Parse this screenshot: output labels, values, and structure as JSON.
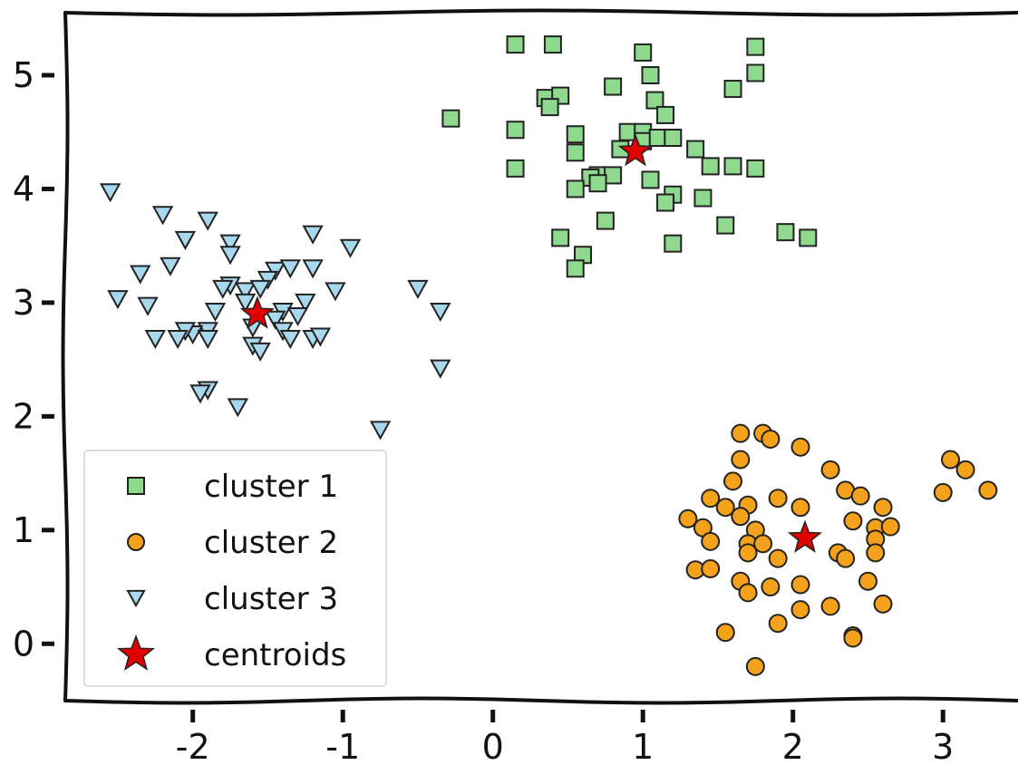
{
  "chart_data": {
    "type": "scatter",
    "title": "",
    "xlabel": "",
    "ylabel": "",
    "xlim": [
      -2.85,
      3.5
    ],
    "ylim": [
      -0.5,
      5.55
    ],
    "xticks": [
      -2,
      -1,
      0,
      1,
      2,
      3
    ],
    "yticks": [
      0,
      1,
      2,
      3,
      4,
      5
    ],
    "xtick_labels": [
      "-2",
      "-1",
      "0",
      "1",
      "2",
      "3"
    ],
    "ytick_labels": [
      "0",
      "1",
      "2",
      "3",
      "4",
      "5"
    ],
    "grid": false,
    "legend_position": "lower-left",
    "series": [
      {
        "name": "cluster 1",
        "marker": "square",
        "color": "#8fd98f",
        "points": [
          [
            0.15,
            5.27
          ],
          [
            0.4,
            5.27
          ],
          [
            1.0,
            5.2
          ],
          [
            1.05,
            5.0
          ],
          [
            1.75,
            5.25
          ],
          [
            1.75,
            5.02
          ],
          [
            0.8,
            4.9
          ],
          [
            1.6,
            4.88
          ],
          [
            0.35,
            4.8
          ],
          [
            0.45,
            4.82
          ],
          [
            0.38,
            4.72
          ],
          [
            1.08,
            4.78
          ],
          [
            -0.28,
            4.62
          ],
          [
            1.15,
            4.65
          ],
          [
            0.15,
            4.52
          ],
          [
            0.55,
            4.48
          ],
          [
            0.9,
            4.5
          ],
          [
            1.0,
            4.5
          ],
          [
            1.0,
            4.42
          ],
          [
            1.1,
            4.45
          ],
          [
            1.2,
            4.45
          ],
          [
            0.55,
            4.32
          ],
          [
            0.85,
            4.35
          ],
          [
            1.35,
            4.35
          ],
          [
            1.45,
            4.2
          ],
          [
            1.6,
            4.2
          ],
          [
            1.75,
            4.18
          ],
          [
            0.15,
            4.18
          ],
          [
            0.7,
            4.12
          ],
          [
            0.65,
            4.1
          ],
          [
            0.8,
            4.12
          ],
          [
            0.7,
            4.05
          ],
          [
            1.05,
            4.08
          ],
          [
            0.55,
            4.0
          ],
          [
            1.2,
            3.95
          ],
          [
            1.15,
            3.88
          ],
          [
            1.4,
            3.92
          ],
          [
            0.75,
            3.72
          ],
          [
            1.55,
            3.68
          ],
          [
            1.95,
            3.62
          ],
          [
            2.1,
            3.57
          ],
          [
            0.45,
            3.57
          ],
          [
            1.2,
            3.52
          ],
          [
            0.6,
            3.42
          ],
          [
            0.55,
            3.3
          ]
        ]
      },
      {
        "name": "cluster 2",
        "marker": "circle",
        "color": "#f4a21b",
        "points": [
          [
            1.65,
            1.85
          ],
          [
            1.8,
            1.85
          ],
          [
            1.85,
            1.8
          ],
          [
            1.65,
            1.62
          ],
          [
            2.05,
            1.73
          ],
          [
            2.25,
            1.53
          ],
          [
            3.05,
            1.62
          ],
          [
            3.15,
            1.53
          ],
          [
            1.6,
            1.43
          ],
          [
            3.3,
            1.35
          ],
          [
            3.0,
            1.33
          ],
          [
            1.45,
            1.28
          ],
          [
            2.35,
            1.35
          ],
          [
            2.45,
            1.3
          ],
          [
            2.6,
            1.2
          ],
          [
            1.55,
            1.2
          ],
          [
            1.7,
            1.22
          ],
          [
            1.9,
            1.28
          ],
          [
            2.05,
            1.2
          ],
          [
            1.65,
            1.12
          ],
          [
            1.3,
            1.1
          ],
          [
            1.75,
            1.0
          ],
          [
            1.4,
            1.02
          ],
          [
            2.4,
            1.08
          ],
          [
            2.55,
            1.02
          ],
          [
            2.65,
            1.03
          ],
          [
            1.45,
            0.9
          ],
          [
            1.7,
            0.88
          ],
          [
            1.8,
            0.88
          ],
          [
            2.55,
            0.92
          ],
          [
            1.7,
            0.8
          ],
          [
            1.9,
            0.75
          ],
          [
            2.3,
            0.8
          ],
          [
            2.35,
            0.75
          ],
          [
            2.55,
            0.8
          ],
          [
            1.35,
            0.65
          ],
          [
            1.45,
            0.66
          ],
          [
            1.65,
            0.55
          ],
          [
            2.05,
            0.52
          ],
          [
            2.5,
            0.55
          ],
          [
            1.85,
            0.5
          ],
          [
            1.7,
            0.45
          ],
          [
            2.25,
            0.33
          ],
          [
            2.6,
            0.35
          ],
          [
            2.05,
            0.3
          ],
          [
            1.55,
            0.1
          ],
          [
            1.9,
            0.18
          ],
          [
            2.4,
            0.07
          ],
          [
            2.4,
            0.05
          ],
          [
            1.75,
            -0.2
          ]
        ]
      },
      {
        "name": "cluster 3",
        "marker": "triangle-down",
        "color": "#a8d8ee",
        "points": [
          [
            -2.55,
            3.97
          ],
          [
            -2.2,
            3.77
          ],
          [
            -1.9,
            3.72
          ],
          [
            -2.05,
            3.55
          ],
          [
            -1.75,
            3.52
          ],
          [
            -1.2,
            3.6
          ],
          [
            -0.95,
            3.48
          ],
          [
            -1.75,
            3.42
          ],
          [
            -2.15,
            3.32
          ],
          [
            -2.35,
            3.25
          ],
          [
            -1.45,
            3.28
          ],
          [
            -1.35,
            3.3
          ],
          [
            -1.2,
            3.3
          ],
          [
            -1.5,
            3.2
          ],
          [
            -1.75,
            3.15
          ],
          [
            -1.8,
            3.12
          ],
          [
            -1.65,
            3.1
          ],
          [
            -1.55,
            3.12
          ],
          [
            -2.5,
            3.03
          ],
          [
            -2.3,
            2.97
          ],
          [
            -1.65,
            3.0
          ],
          [
            -1.25,
            3.0
          ],
          [
            -1.05,
            3.1
          ],
          [
            -0.5,
            3.12
          ],
          [
            -1.85,
            2.92
          ],
          [
            -1.4,
            2.92
          ],
          [
            -1.45,
            2.85
          ],
          [
            -1.3,
            2.88
          ],
          [
            -0.35,
            2.92
          ],
          [
            -1.6,
            2.78
          ],
          [
            -1.9,
            2.75
          ],
          [
            -2.0,
            2.72
          ],
          [
            -2.05,
            2.75
          ],
          [
            -1.4,
            2.75
          ],
          [
            -2.25,
            2.68
          ],
          [
            -2.1,
            2.68
          ],
          [
            -1.35,
            2.68
          ],
          [
            -1.2,
            2.68
          ],
          [
            -1.15,
            2.7
          ],
          [
            -1.9,
            2.68
          ],
          [
            -1.6,
            2.62
          ],
          [
            -1.55,
            2.57
          ],
          [
            -0.35,
            2.42
          ],
          [
            -1.9,
            2.23
          ],
          [
            -1.95,
            2.2
          ],
          [
            -1.7,
            2.08
          ],
          [
            -0.75,
            1.88
          ]
        ]
      },
      {
        "name": "centroids",
        "marker": "star",
        "color": "#e00000",
        "points": [
          [
            0.95,
            4.33
          ],
          [
            -1.57,
            2.9
          ],
          [
            2.08,
            0.93
          ]
        ]
      }
    ]
  }
}
